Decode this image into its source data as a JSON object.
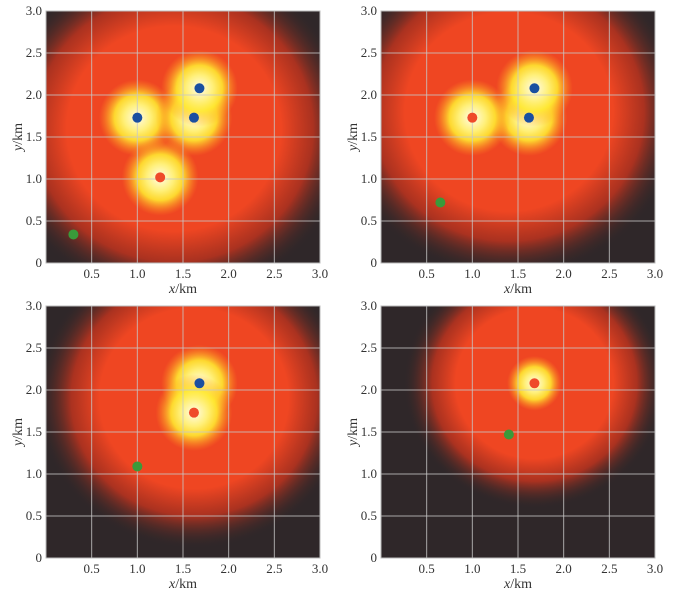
{
  "chart_data": [
    {
      "type": "heatmap",
      "xlabel_var": "x",
      "xlabel_unit": "/km",
      "ylabel_var": "y",
      "ylabel_unit": "/km",
      "xlim": [
        0,
        3
      ],
      "ylim": [
        0,
        3
      ],
      "grid": true,
      "xticks": [
        "0.5",
        "1.0",
        "1.5",
        "2.0",
        "2.5",
        "3.0"
      ],
      "yticks": [
        "0",
        "0.5",
        "1.0",
        "1.5",
        "2.0",
        "2.5",
        "3.0"
      ],
      "field": {
        "center": [
          1.4,
          1.6
        ],
        "radius": 1.7
      },
      "points": [
        {
          "color": "blue",
          "x": 1.0,
          "y": 1.73
        },
        {
          "color": "blue",
          "x": 1.62,
          "y": 1.73
        },
        {
          "color": "blue",
          "x": 1.68,
          "y": 2.08
        },
        {
          "color": "red",
          "x": 1.25,
          "y": 1.02
        },
        {
          "color": "green",
          "x": 0.3,
          "y": 0.34
        }
      ]
    },
    {
      "type": "heatmap",
      "xlabel_var": "x",
      "xlabel_unit": "/km",
      "ylabel_var": "y",
      "ylabel_unit": "/km",
      "xlim": [
        0,
        3
      ],
      "ylim": [
        0,
        3
      ],
      "grid": true,
      "xticks": [
        "0.5",
        "1.0",
        "1.5",
        "2.0",
        "2.5",
        "3.0"
      ],
      "yticks": [
        "0",
        "0.5",
        "1.0",
        "1.5",
        "2.0",
        "2.5",
        "3.0"
      ],
      "field": {
        "center": [
          1.4,
          1.8
        ],
        "radius": 1.65
      },
      "points": [
        {
          "color": "blue",
          "x": 1.62,
          "y": 1.73
        },
        {
          "color": "blue",
          "x": 1.68,
          "y": 2.08
        },
        {
          "color": "red",
          "x": 1.0,
          "y": 1.73
        },
        {
          "color": "green",
          "x": 0.65,
          "y": 0.72
        }
      ]
    },
    {
      "type": "heatmap",
      "xlabel_var": "x",
      "xlabel_unit": "/km",
      "ylabel_var": "y",
      "ylabel_unit": "/km",
      "xlim": [
        0,
        3
      ],
      "ylim": [
        0,
        3
      ],
      "grid": true,
      "xticks": [
        "0.5",
        "1.0",
        "1.5",
        "2.0",
        "2.5",
        "3.0"
      ],
      "yticks": [
        "0",
        "0.5",
        "1.0",
        "1.5",
        "2.0",
        "2.5",
        "3.0"
      ],
      "field": {
        "center": [
          1.62,
          1.9
        ],
        "radius": 1.5
      },
      "points": [
        {
          "color": "blue",
          "x": 1.68,
          "y": 2.08
        },
        {
          "color": "red",
          "x": 1.62,
          "y": 1.73
        },
        {
          "color": "green",
          "x": 1.0,
          "y": 1.09
        }
      ]
    },
    {
      "type": "heatmap",
      "xlabel_var": "x",
      "xlabel_unit": "/km",
      "ylabel_var": "y",
      "ylabel_unit": "/km",
      "xlim": [
        0,
        3
      ],
      "ylim": [
        0,
        3
      ],
      "grid": true,
      "xticks": [
        "0.5",
        "1.0",
        "1.5",
        "2.0",
        "2.5",
        "3.0"
      ],
      "yticks": [
        "0",
        "0.5",
        "1.0",
        "1.5",
        "2.0",
        "2.5",
        "3.0"
      ],
      "field": {
        "center": [
          1.68,
          2.08
        ],
        "radius": 1.25
      },
      "points": [
        {
          "color": "red",
          "x": 1.68,
          "y": 2.08
        },
        {
          "color": "green",
          "x": 1.4,
          "y": 1.47
        }
      ]
    }
  ],
  "colors": {
    "blue": "#1a4fa0",
    "red": "#ef4a2a",
    "green": "#3a9a3a",
    "background": "#2f2729",
    "field": "#ef4622",
    "glow": "#ffe830"
  }
}
